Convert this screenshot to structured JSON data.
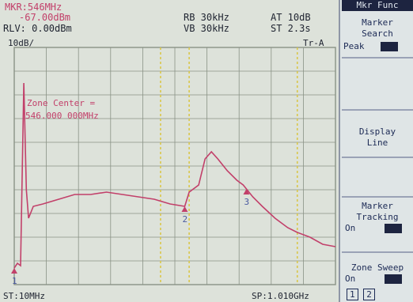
{
  "header": {
    "marker_freq": "MKR:546MHz",
    "marker_level": "-67.00dBm",
    "ref_level": "RLV: 0.00dBm",
    "rbw": "RB 30kHz",
    "vbw": "VB 30kHz",
    "atten": "AT 10dB",
    "sweep_time": "ST 2.3s",
    "scale": "10dB/",
    "trace_mode": "Tr-A"
  },
  "overlay": {
    "zone_center_label": "Zone Center =",
    "zone_center_value": "546.000 000MHz"
  },
  "footer": {
    "start": "ST:10MHz",
    "span": "SP:1.010GHz",
    "page_tabs": [
      "1",
      "2"
    ]
  },
  "softkeys": {
    "menu_title": "Mkr Func",
    "marker_search": [
      "Marker",
      "Search"
    ],
    "peak_label": "Peak",
    "display_line": [
      "Display",
      "Line"
    ],
    "marker_tracking": [
      "Marker",
      "Tracking"
    ],
    "on_label": "On",
    "zone_sweep": "Zone Sweep",
    "zone_on_label": "On"
  },
  "markers": [
    "1",
    "2",
    "3"
  ],
  "colors": {
    "trace": "#c2406a",
    "grid": "#8a9286",
    "line_yellow": "#d9c74a",
    "text": "#1e2330",
    "softkey_text": "#1c2a55"
  },
  "chart_data": {
    "type": "line",
    "x_start_mhz": 10,
    "x_span_mhz": 1010,
    "y_ref_dbm": 0,
    "y_scale_db_per_div": 10,
    "divisions_x": 10,
    "divisions_y": 10,
    "series": [
      {
        "points_mhz_dbm": [
          [
            10,
            -93
          ],
          [
            20,
            -91
          ],
          [
            30,
            -92
          ],
          [
            40,
            -15
          ],
          [
            48,
            -60
          ],
          [
            55,
            -72
          ],
          [
            70,
            -67
          ],
          [
            100,
            -66
          ],
          [
            150,
            -64
          ],
          [
            200,
            -62
          ],
          [
            250,
            -62
          ],
          [
            300,
            -61
          ],
          [
            350,
            -62
          ],
          [
            400,
            -63
          ],
          [
            450,
            -64
          ],
          [
            500,
            -66
          ],
          [
            546,
            -67
          ],
          [
            560,
            -61
          ],
          [
            590,
            -58
          ],
          [
            610,
            -47
          ],
          [
            630,
            -44
          ],
          [
            650,
            -47
          ],
          [
            680,
            -52
          ],
          [
            710,
            -56
          ],
          [
            730,
            -58
          ],
          [
            760,
            -63
          ],
          [
            790,
            -67
          ],
          [
            830,
            -72
          ],
          [
            870,
            -76
          ],
          [
            900,
            -78
          ],
          [
            940,
            -80
          ],
          [
            980,
            -83
          ],
          [
            1020,
            -84
          ]
        ]
      }
    ],
    "marker_points_mhz": [
      10,
      546,
      740
    ],
    "yellow_lines_mhz": [
      470,
      560,
      900
    ]
  }
}
